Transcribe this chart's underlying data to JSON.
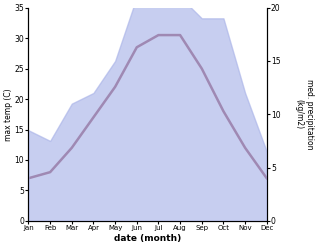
{
  "months": [
    "Jan",
    "Feb",
    "Mar",
    "Apr",
    "May",
    "Jun",
    "Jul",
    "Aug",
    "Sep",
    "Oct",
    "Nov",
    "Dec"
  ],
  "temp_max": [
    7.0,
    8.0,
    12.0,
    17.0,
    22.0,
    28.5,
    30.5,
    30.5,
    25.0,
    18.0,
    12.0,
    7.0
  ],
  "precipitation": [
    8.5,
    7.5,
    11.0,
    12.0,
    15.0,
    21.0,
    21.5,
    21.0,
    19.0,
    19.0,
    12.0,
    6.5
  ],
  "precip_color": "#aab4e8",
  "precip_alpha": 0.65,
  "xlabel": "date (month)",
  "ylabel_left": "max temp (C)",
  "ylabel_right": "med. precipitation\n(kg/m2)",
  "ylim_left": [
    0,
    35
  ],
  "ylim_right": [
    0,
    20
  ],
  "yticks_left": [
    0,
    5,
    10,
    15,
    20,
    25,
    30,
    35
  ],
  "yticks_right": [
    0,
    5,
    10,
    15,
    20
  ],
  "bg_color": "#ffffff",
  "temp_linewidth": 1.8,
  "temp_line_color": "#8B3A52"
}
